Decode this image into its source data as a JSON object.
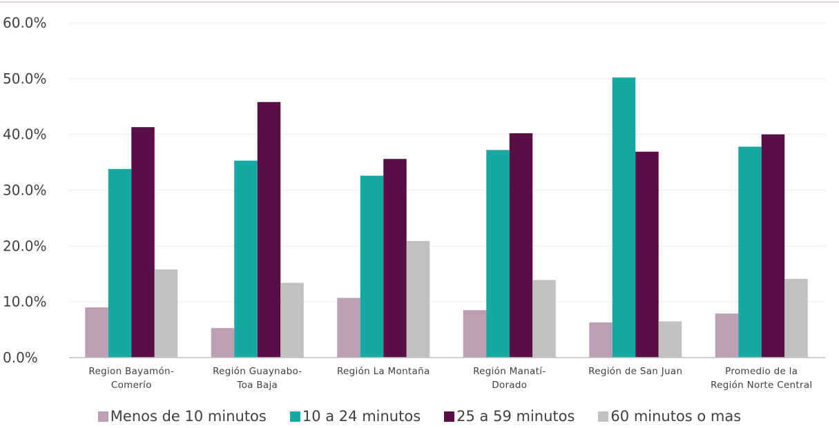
{
  "chart_data": {
    "type": "bar",
    "title": "",
    "xlabel": "",
    "ylabel": "",
    "ylim": [
      0,
      60
    ],
    "y_tick_values": [
      0,
      10,
      20,
      30,
      40,
      50,
      60
    ],
    "y_tick_labels": [
      "0.0%",
      "10.0%",
      "20.0%",
      "30.0%",
      "40.0%",
      "50.0%",
      "60.0%"
    ],
    "grid": true,
    "legend_position": "bottom",
    "categories": [
      [
        "Region  Bayamón-",
        "Comerío"
      ],
      [
        "Región Guaynabo-",
        "Toa Baja"
      ],
      [
        "Región La Montaña"
      ],
      [
        "Región Manatí-",
        "Dorado"
      ],
      [
        "Región de San Juan"
      ],
      [
        "Promedio de la",
        "Región Norte Central"
      ]
    ],
    "series": [
      {
        "name": "Menos de 10 minutos",
        "color": "#bba0b4",
        "values": [
          9.0,
          5.3,
          10.7,
          8.5,
          6.3,
          7.9
        ]
      },
      {
        "name": "10 a 24 minutos",
        "color": "#16a9a4",
        "values": [
          33.8,
          35.3,
          32.6,
          37.2,
          50.2,
          37.8
        ]
      },
      {
        "name": "25  a 59 minutos",
        "color": "#590e45",
        "values": [
          41.3,
          45.8,
          35.6,
          40.2,
          36.9,
          40.0
        ]
      },
      {
        "name": "60 minutos o mas",
        "color": "#c1c1c1",
        "values": [
          15.8,
          13.4,
          20.9,
          13.9,
          6.5,
          14.1
        ]
      }
    ]
  }
}
